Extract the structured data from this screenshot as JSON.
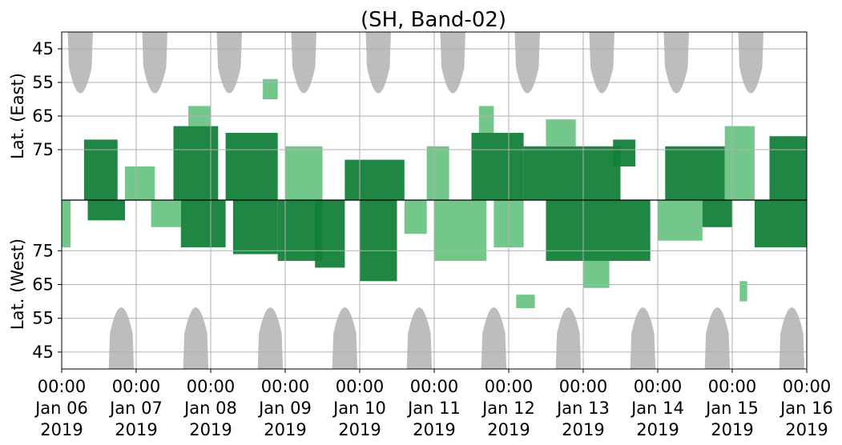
{
  "chart_data": {
    "type": "heatmap",
    "title": "(SH, Band-02)",
    "ylabel_east": "Lat. (East)",
    "ylabel_west": "Lat. (West)",
    "x_range_days": [
      0,
      10
    ],
    "x_ticks": [
      {
        "time": "00:00",
        "date": "Jan 06",
        "year": "2019"
      },
      {
        "time": "00:00",
        "date": "Jan 07",
        "year": "2019"
      },
      {
        "time": "00:00",
        "date": "Jan 08",
        "year": "2019"
      },
      {
        "time": "00:00",
        "date": "Jan 09",
        "year": "2019"
      },
      {
        "time": "00:00",
        "date": "Jan 10",
        "year": "2019"
      },
      {
        "time": "00:00",
        "date": "Jan 11",
        "year": "2019"
      },
      {
        "time": "00:00",
        "date": "Jan 12",
        "year": "2019"
      },
      {
        "time": "00:00",
        "date": "Jan 13",
        "year": "2019"
      },
      {
        "time": "00:00",
        "date": "Jan 14",
        "year": "2019"
      },
      {
        "time": "00:00",
        "date": "Jan 15",
        "year": "2019"
      },
      {
        "time": "00:00",
        "date": "Jan 16",
        "year": "2019"
      }
    ],
    "east_ticks": [
      "45",
      "55",
      "65",
      "75"
    ],
    "west_ticks": [
      "75",
      "65",
      "55",
      "45"
    ],
    "grid": true,
    "colors": {
      "strong": "#13803a",
      "weak": "#5bbd76",
      "night": "#bdbdbd",
      "grid": "#b0b0b0",
      "axis": "#000000"
    },
    "night_east_centers": [
      0.25,
      1.25,
      2.25,
      3.25,
      4.25,
      5.25,
      6.25,
      7.25,
      8.25,
      9.25
    ],
    "night_west_centers": [
      0.8,
      1.8,
      2.8,
      3.8,
      4.8,
      5.8,
      6.8,
      7.8,
      8.8,
      9.8
    ],
    "activity_east": [
      {
        "x": 0.3,
        "w": 0.45,
        "lat": [
          72,
          90
        ],
        "level": "strong"
      },
      {
        "x": 0.85,
        "w": 0.4,
        "lat": [
          80,
          90
        ],
        "level": "weak"
      },
      {
        "x": 1.5,
        "w": 0.6,
        "lat": [
          68,
          90
        ],
        "level": "strong"
      },
      {
        "x": 1.7,
        "w": 0.3,
        "lat": [
          62,
          68
        ],
        "level": "weak"
      },
      {
        "x": 2.2,
        "w": 0.7,
        "lat": [
          70,
          90
        ],
        "level": "strong"
      },
      {
        "x": 2.7,
        "w": 0.2,
        "lat": [
          54,
          60
        ],
        "level": "weak"
      },
      {
        "x": 3.0,
        "w": 0.5,
        "lat": [
          74,
          90
        ],
        "level": "weak"
      },
      {
        "x": 3.8,
        "w": 0.8,
        "lat": [
          78,
          90
        ],
        "level": "strong"
      },
      {
        "x": 4.9,
        "w": 0.3,
        "lat": [
          74,
          90
        ],
        "level": "weak"
      },
      {
        "x": 5.5,
        "w": 0.7,
        "lat": [
          70,
          90
        ],
        "level": "strong"
      },
      {
        "x": 5.6,
        "w": 0.2,
        "lat": [
          62,
          70
        ],
        "level": "weak"
      },
      {
        "x": 6.2,
        "w": 1.3,
        "lat": [
          74,
          90
        ],
        "level": "strong"
      },
      {
        "x": 6.5,
        "w": 0.4,
        "lat": [
          66,
          74
        ],
        "level": "weak"
      },
      {
        "x": 7.4,
        "w": 0.3,
        "lat": [
          72,
          80
        ],
        "level": "strong"
      },
      {
        "x": 8.1,
        "w": 0.8,
        "lat": [
          74,
          90
        ],
        "level": "strong"
      },
      {
        "x": 8.9,
        "w": 0.4,
        "lat": [
          68,
          90
        ],
        "level": "weak"
      },
      {
        "x": 9.5,
        "w": 0.5,
        "lat": [
          71,
          90
        ],
        "level": "strong"
      }
    ],
    "activity_west": [
      {
        "x": 0.0,
        "w": 0.12,
        "lat": [
          76,
          90
        ],
        "level": "weak"
      },
      {
        "x": 0.35,
        "w": 0.5,
        "lat": [
          84,
          90
        ],
        "level": "strong"
      },
      {
        "x": 1.2,
        "w": 0.4,
        "lat": [
          82,
          90
        ],
        "level": "weak"
      },
      {
        "x": 1.6,
        "w": 0.6,
        "lat": [
          76,
          90
        ],
        "level": "strong"
      },
      {
        "x": 2.3,
        "w": 0.6,
        "lat": [
          74,
          90
        ],
        "level": "strong"
      },
      {
        "x": 2.9,
        "w": 0.6,
        "lat": [
          72,
          90
        ],
        "level": "strong"
      },
      {
        "x": 3.4,
        "w": 0.4,
        "lat": [
          70,
          90
        ],
        "level": "strong"
      },
      {
        "x": 4.0,
        "w": 0.5,
        "lat": [
          66,
          90
        ],
        "level": "strong"
      },
      {
        "x": 4.6,
        "w": 0.3,
        "lat": [
          80,
          90
        ],
        "level": "weak"
      },
      {
        "x": 5.0,
        "w": 0.7,
        "lat": [
          72,
          90
        ],
        "level": "weak"
      },
      {
        "x": 5.8,
        "w": 0.4,
        "lat": [
          76,
          90
        ],
        "level": "weak"
      },
      {
        "x": 6.1,
        "w": 0.25,
        "lat": [
          58,
          62
        ],
        "level": "weak"
      },
      {
        "x": 6.5,
        "w": 1.4,
        "lat": [
          72,
          90
        ],
        "level": "strong"
      },
      {
        "x": 7.0,
        "w": 0.35,
        "lat": [
          64,
          72
        ],
        "level": "weak"
      },
      {
        "x": 8.0,
        "w": 0.6,
        "lat": [
          78,
          90
        ],
        "level": "weak"
      },
      {
        "x": 8.6,
        "w": 0.4,
        "lat": [
          82,
          90
        ],
        "level": "strong"
      },
      {
        "x": 9.1,
        "w": 0.1,
        "lat": [
          60,
          66
        ],
        "level": "weak"
      },
      {
        "x": 9.3,
        "w": 0.7,
        "lat": [
          76,
          90
        ],
        "level": "strong"
      }
    ]
  }
}
